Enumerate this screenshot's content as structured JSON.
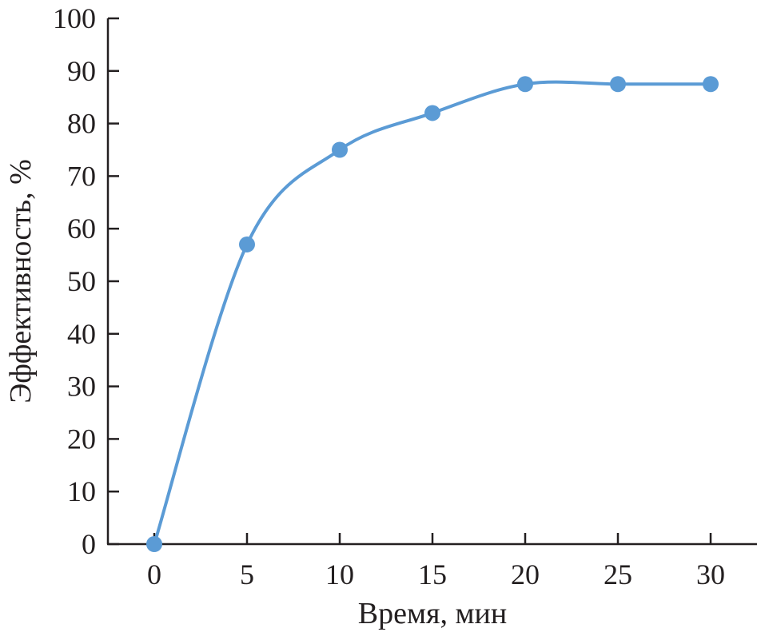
{
  "chart_data": {
    "type": "line",
    "title": "",
    "xlabel": "Время, мин",
    "ylabel": "Эффективность, %",
    "x": [
      0,
      5,
      10,
      15,
      20,
      25,
      30
    ],
    "series": [
      {
        "values": [
          0,
          57,
          75,
          82,
          87.5,
          87.5,
          87.5
        ],
        "color": "#5b9bd5",
        "markers": true,
        "smooth": true
      }
    ],
    "xlim": [
      -2.5,
      32.5
    ],
    "ylim": [
      0,
      100
    ],
    "xticks": [
      0,
      5,
      10,
      15,
      20,
      25,
      30
    ],
    "yticks": [
      0,
      10,
      20,
      30,
      40,
      50,
      60,
      70,
      80,
      90,
      100
    ],
    "grid": false,
    "legend": "none"
  }
}
